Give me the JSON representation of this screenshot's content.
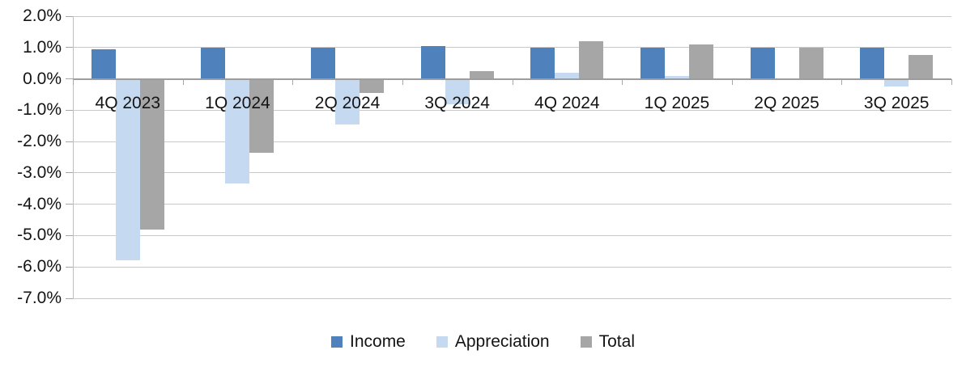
{
  "chart_data": {
    "type": "bar",
    "title": "",
    "categories": [
      "4Q 2023",
      "1Q 2024",
      "2Q 2024",
      "3Q 2024",
      "4Q 2024",
      "1Q 2025",
      "2Q 2025",
      "3Q 2025"
    ],
    "series": [
      {
        "name": "Income",
        "color": "#4F81BD",
        "values": [
          0.95,
          1.0,
          1.0,
          1.05,
          1.0,
          1.0,
          1.0,
          1.0
        ]
      },
      {
        "name": "Appreciation",
        "color": "#C5D9F1",
        "values": [
          -5.8,
          -3.35,
          -1.45,
          -0.8,
          0.2,
          0.1,
          0.02,
          -0.25
        ]
      },
      {
        "name": "Total",
        "color": "#A6A6A6",
        "values": [
          -4.8,
          -2.35,
          -0.45,
          0.25,
          1.2,
          1.1,
          1.0,
          0.75
        ]
      }
    ],
    "y_axis": {
      "min": -7.0,
      "max": 2.0,
      "step": 1.0,
      "tick_labels": [
        "2.0%",
        "1.0%",
        "0.0%",
        "-1.0%",
        "-2.0%",
        "-3.0%",
        "-4.0%",
        "-5.0%",
        "-6.0%",
        "-7.0%"
      ],
      "format": "percent"
    },
    "legend": {
      "position": "bottom",
      "entries": [
        "Income",
        "Appreciation",
        "Total"
      ]
    },
    "grid": true
  },
  "colors": {
    "background": "#FFFFFF",
    "gridline": "#C9C9C9",
    "zero_axis_line": "#9D9D9D",
    "vertical_axis_line": "#BFBFBF",
    "tick": "#A6A6A6",
    "text": "#141414"
  }
}
